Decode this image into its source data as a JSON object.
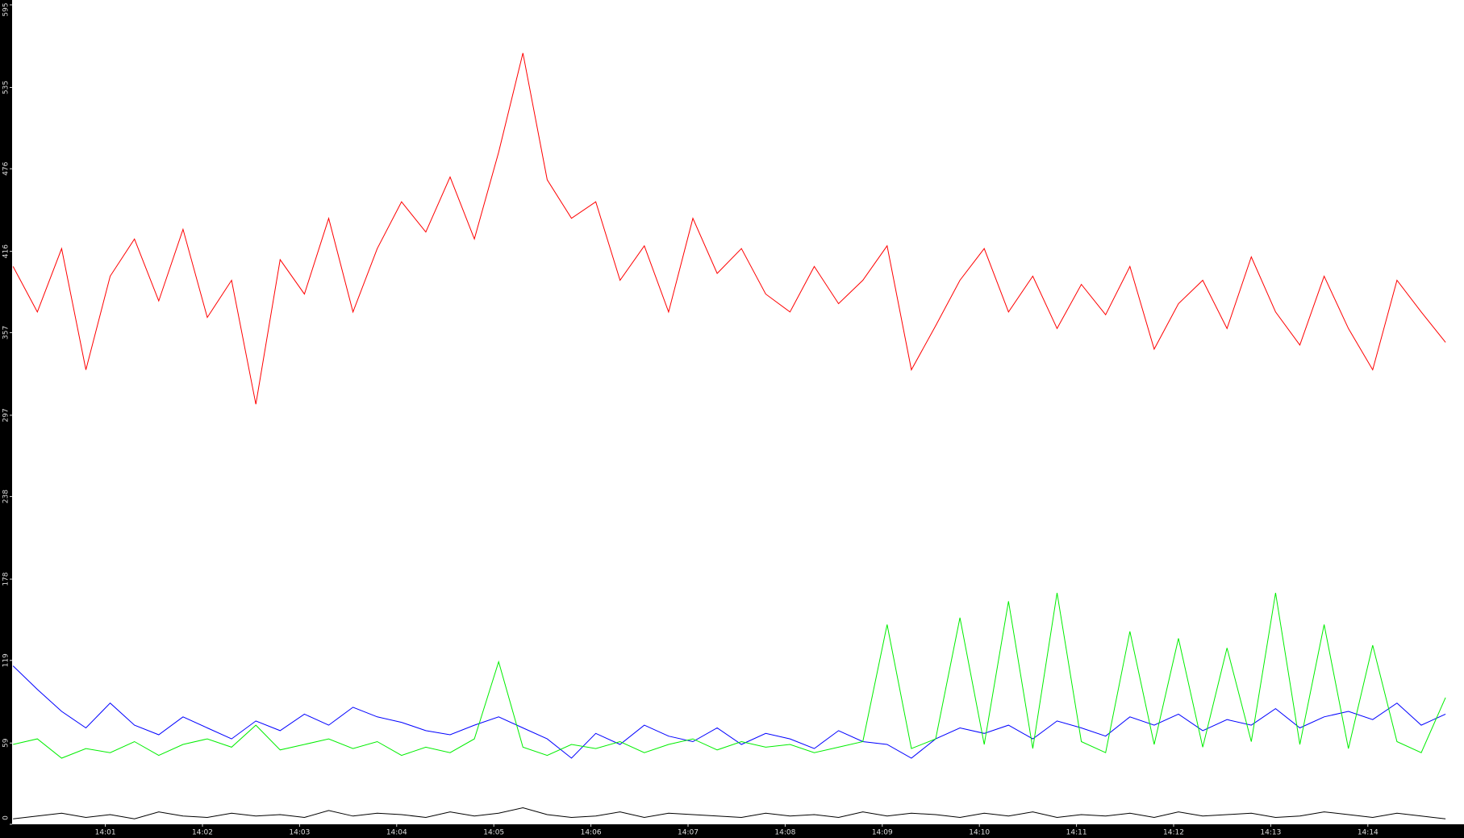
{
  "chart_data": {
    "type": "line",
    "x": [
      0.05,
      0.3,
      0.55,
      0.8,
      1.05,
      1.3,
      1.55,
      1.8,
      2.05,
      2.3,
      2.55,
      2.8,
      3.05,
      3.3,
      3.55,
      3.8,
      4.05,
      4.3,
      4.55,
      4.8,
      5.05,
      5.3,
      5.55,
      5.8,
      6.05,
      6.3,
      6.55,
      6.8,
      7.05,
      7.3,
      7.55,
      7.8,
      8.05,
      8.3,
      8.55,
      8.8,
      9.05,
      9.3,
      9.55,
      9.8,
      10.05,
      10.3,
      10.55,
      10.8,
      11.05,
      11.3,
      11.55,
      11.8,
      12.05,
      12.3,
      12.55,
      12.8,
      13.05,
      13.3,
      13.55,
      13.8,
      14.05,
      14.3,
      14.55,
      14.8
    ],
    "series": [
      {
        "color": "#ff0000",
        "values": [
          405,
          372,
          418,
          330,
          398,
          425,
          380,
          432,
          368,
          395,
          305,
          410,
          385,
          440,
          372,
          418,
          452,
          430,
          470,
          425,
          488,
          560,
          468,
          440,
          452,
          395,
          420,
          372,
          440,
          400,
          418,
          385,
          372,
          405,
          378,
          395,
          420,
          330,
          362,
          395,
          418,
          372,
          398,
          360,
          392,
          370,
          405,
          345,
          378,
          395,
          360,
          412,
          372,
          348,
          398,
          360,
          330,
          395,
          372,
          350
        ]
      },
      {
        "color": "#0000ff",
        "values": [
          115,
          98,
          82,
          70,
          88,
          72,
          65,
          78,
          70,
          62,
          75,
          68,
          80,
          72,
          85,
          78,
          74,
          68,
          65,
          72,
          78,
          70,
          62,
          48,
          66,
          58,
          72,
          64,
          60,
          70,
          58,
          66,
          62,
          55,
          68,
          60,
          58,
          48,
          62,
          70,
          66,
          72,
          62,
          75,
          70,
          64,
          78,
          72,
          80,
          68,
          76,
          72,
          84,
          70,
          78,
          82,
          76,
          88,
          72,
          80
        ]
      },
      {
        "color": "#00ee00",
        "values": [
          58,
          62,
          48,
          55,
          52,
          60,
          50,
          58,
          62,
          56,
          72,
          54,
          58,
          62,
          55,
          60,
          50,
          56,
          52,
          62,
          118,
          56,
          50,
          58,
          55,
          60,
          52,
          58,
          62,
          54,
          60,
          56,
          58,
          52,
          56,
          60,
          145,
          55,
          62,
          150,
          58,
          162,
          55,
          168,
          60,
          52,
          140,
          58,
          135,
          56,
          128,
          60,
          168,
          58,
          145,
          55,
          130,
          60,
          52,
          92
        ]
      },
      {
        "color": "#000000",
        "values": [
          4,
          6,
          8,
          5,
          7,
          4,
          9,
          6,
          5,
          8,
          6,
          7,
          5,
          10,
          6,
          8,
          7,
          5,
          9,
          6,
          8,
          12,
          7,
          5,
          6,
          9,
          5,
          8,
          7,
          6,
          5,
          8,
          6,
          7,
          5,
          9,
          6,
          8,
          7,
          5,
          8,
          6,
          9,
          5,
          7,
          6,
          8,
          5,
          9,
          6,
          7,
          8,
          5,
          6,
          9,
          7,
          5,
          8,
          6,
          4
        ]
      }
    ],
    "xlim": [
      0.04,
      14.99
    ],
    "xticks": [
      {
        "value": 1,
        "label": "14:01"
      },
      {
        "value": 2,
        "label": "14:02"
      },
      {
        "value": 3,
        "label": "14:03"
      },
      {
        "value": 4,
        "label": "14:04"
      },
      {
        "value": 5,
        "label": "14:05"
      },
      {
        "value": 6,
        "label": "14:06"
      },
      {
        "value": 7,
        "label": "14:07"
      },
      {
        "value": 8,
        "label": "14:08"
      },
      {
        "value": 9,
        "label": "14:09"
      },
      {
        "value": 10,
        "label": "14:10"
      },
      {
        "value": 11,
        "label": "14:11"
      },
      {
        "value": 12,
        "label": "14:12"
      },
      {
        "value": 13,
        "label": "14:13"
      },
      {
        "value": 14,
        "label": "14:14"
      }
    ],
    "ylim": [
      0,
      595
    ],
    "yticks": [
      0,
      59,
      119,
      178,
      238,
      297,
      357,
      416,
      476,
      535,
      595
    ]
  }
}
